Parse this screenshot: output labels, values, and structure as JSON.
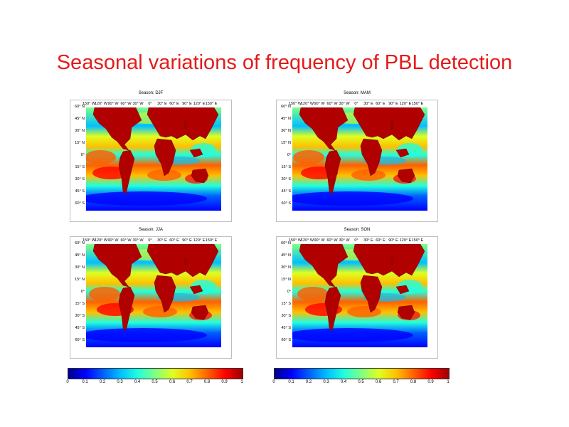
{
  "title": "Seasonal variations of frequency of PBL detection",
  "panels": [
    {
      "season": "Season: DJF"
    },
    {
      "season": "Season: MAM"
    },
    {
      "season": "Season: JJA"
    },
    {
      "season": "Season: SON"
    }
  ],
  "lon_ticks": [
    "150° W",
    "120° W",
    "90° W",
    "60° W",
    "30° W",
    "0°",
    "30° E",
    "60° E",
    "90° E",
    "120° E",
    "150° E"
  ],
  "lat_ticks": [
    "60° N",
    "45° N",
    "30° N",
    "15° N",
    "0°",
    "15° S",
    "30° S",
    "45° S",
    "60° S"
  ],
  "colorbar": {
    "ticks": [
      "0",
      "0.1",
      "0.2",
      "0.3",
      "0.4",
      "0.5",
      "0.6",
      "0.7",
      "0.8",
      "0.9",
      "1"
    ],
    "colors": [
      "#00008f",
      "#0000ff",
      "#0060ff",
      "#00bfff",
      "#20ffdf",
      "#80ff80",
      "#dfff20",
      "#ffbf00",
      "#ff6000",
      "#ff0000",
      "#9f0000"
    ]
  }
}
